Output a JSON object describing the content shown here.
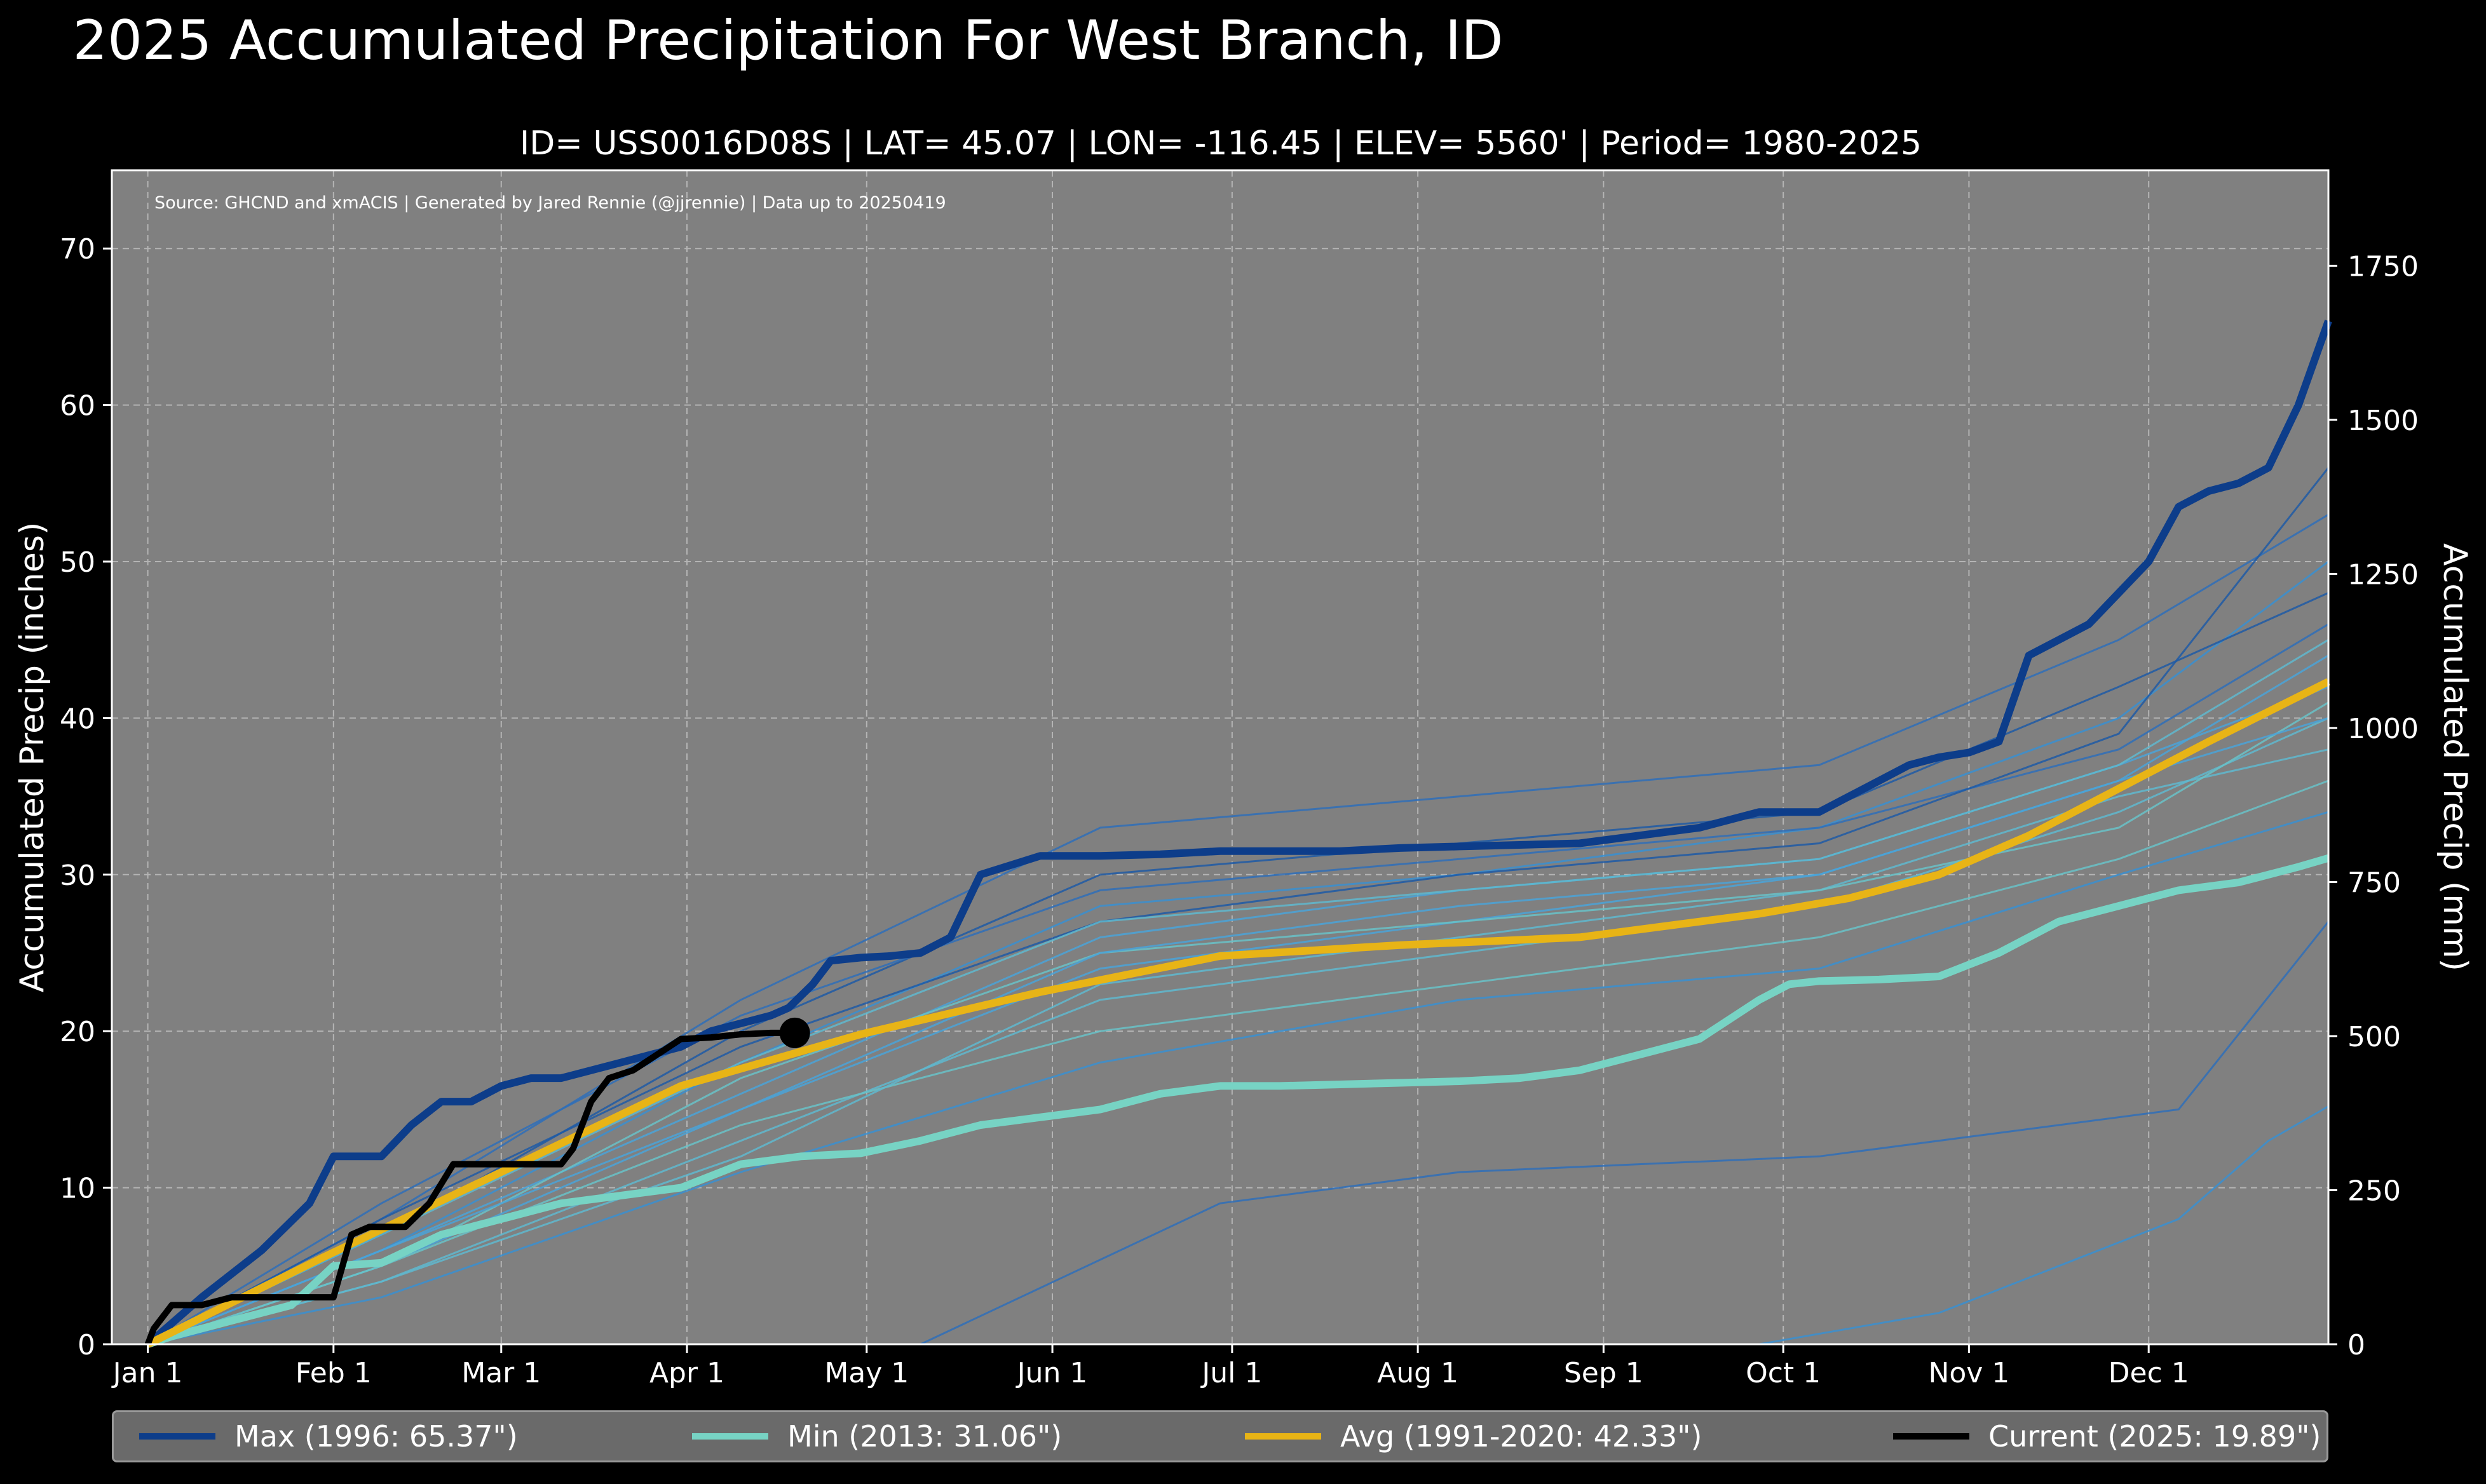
{
  "title": "2025 Accumulated Precipitation For West Branch, ID",
  "subtitle": "ID= USS0016D08S | LAT= 45.07 | LON= -116.45 | ELEV= 5560' | Period= 1980-2025",
  "chart_data": {
    "type": "line",
    "source_note": "Source: GHCND and xmACIS | Generated by Jared Rennie (@jjrennie) | Data up to 20250419",
    "ylabel": "Accumulated Precip (inches)",
    "ylabel_right": "Accumulated Precip (mm)",
    "xlabel": "",
    "ylim": [
      0,
      75
    ],
    "ylim_right_mm": [
      0,
      1905
    ],
    "x_range_days": [
      -5,
      365
    ],
    "yticks": [
      0,
      10,
      20,
      30,
      40,
      50,
      60,
      70
    ],
    "yticks_right": [
      0,
      250,
      500,
      750,
      1000,
      1250,
      1500,
      1750
    ],
    "xticks": [
      {
        "day": 1,
        "label": "Jan 1"
      },
      {
        "day": 32,
        "label": "Feb 1"
      },
      {
        "day": 60,
        "label": "Mar 1"
      },
      {
        "day": 91,
        "label": "Apr 1"
      },
      {
        "day": 121,
        "label": "May 1"
      },
      {
        "day": 152,
        "label": "Jun 1"
      },
      {
        "day": 182,
        "label": "Jul 1"
      },
      {
        "day": 213,
        "label": "Aug 1"
      },
      {
        "day": 244,
        "label": "Sep 1"
      },
      {
        "day": 274,
        "label": "Oct 1"
      },
      {
        "day": 305,
        "label": "Nov 1"
      },
      {
        "day": 335,
        "label": "Dec 1"
      }
    ],
    "grid": true,
    "legend_position": "bottom",
    "colors": {
      "max": "#0d3d8a",
      "min": "#77d3c4",
      "avg": "#e8b416",
      "current": "#000000",
      "background": "#808080",
      "history": "#2f6fb8"
    },
    "series": [
      {
        "name": "Max (1996:  65.37\")",
        "key": "max",
        "x": [
          1,
          10,
          20,
          28,
          32,
          40,
          45,
          50,
          55,
          60,
          65,
          70,
          80,
          90,
          95,
          100,
          105,
          108,
          112,
          115,
          120,
          125,
          130,
          135,
          140,
          150,
          160,
          170,
          180,
          190,
          200,
          210,
          220,
          230,
          240,
          250,
          260,
          270,
          275,
          280,
          285,
          290,
          295,
          300,
          305,
          310,
          315,
          320,
          325,
          330,
          335,
          340,
          345,
          350,
          355,
          360,
          365
        ],
        "y": [
          0,
          3,
          6,
          9,
          12,
          12,
          14,
          15.5,
          15.5,
          16.5,
          17,
          17,
          18,
          19,
          20,
          20.5,
          21,
          21.5,
          23,
          24.5,
          24.7,
          24.8,
          25,
          26,
          30,
          31.2,
          31.2,
          31.3,
          31.5,
          31.5,
          31.5,
          31.7,
          31.8,
          31.9,
          32,
          32.5,
          33,
          34,
          34,
          34,
          35,
          36,
          37,
          37.5,
          37.8,
          38.5,
          44,
          45,
          46,
          48,
          50,
          53.5,
          54.5,
          55,
          56,
          60,
          65.37
        ]
      },
      {
        "name": "Min (2013:  31.06\")",
        "key": "min",
        "x": [
          1,
          5,
          15,
          25,
          32,
          40,
          50,
          60,
          70,
          80,
          90,
          100,
          110,
          120,
          130,
          140,
          150,
          160,
          170,
          180,
          190,
          200,
          210,
          220,
          230,
          240,
          250,
          260,
          270,
          275,
          280,
          290,
          300,
          310,
          320,
          330,
          340,
          350,
          360,
          365
        ],
        "y": [
          0,
          0.5,
          1.5,
          2.5,
          5,
          5.2,
          7,
          8,
          9,
          9.5,
          10,
          11.5,
          12,
          12.2,
          13,
          14,
          14.5,
          15,
          16,
          16.5,
          16.5,
          16.6,
          16.7,
          16.8,
          17,
          17.5,
          18.5,
          19.5,
          22,
          23,
          23.2,
          23.3,
          23.5,
          25,
          27,
          28,
          29,
          29.5,
          30.5,
          31.06
        ]
      },
      {
        "name": "Avg (1991-2020:  42.33\")",
        "key": "avg",
        "x": [
          1,
          30,
          60,
          90,
          120,
          150,
          180,
          210,
          240,
          270,
          285,
          300,
          315,
          330,
          345,
          365
        ],
        "y": [
          0,
          5.5,
          11,
          16.5,
          19.8,
          22.5,
          24.8,
          25.5,
          26,
          27.5,
          28.5,
          30,
          32.5,
          35.5,
          38.5,
          42.33
        ]
      },
      {
        "name": "Current (2025:  19.89\")",
        "key": "current",
        "x": [
          1,
          2,
          5,
          10,
          15,
          20,
          25,
          28,
          32,
          35,
          38,
          40,
          44,
          48,
          52,
          55,
          60,
          65,
          70,
          72,
          75,
          78,
          82,
          86,
          90,
          95,
          100,
          105,
          108,
          109
        ],
        "y": [
          0,
          1,
          2.5,
          2.5,
          3,
          3,
          3,
          3,
          3,
          7,
          7.5,
          7.5,
          7.5,
          9,
          11.5,
          11.5,
          11.5,
          11.5,
          11.5,
          12.5,
          15.5,
          17,
          17.5,
          18.5,
          19.5,
          19.6,
          19.8,
          19.89,
          19.89,
          19.89
        ]
      }
    ],
    "history_series": [
      {
        "x": [
          1,
          40,
          100,
          160,
          220,
          280,
          330,
          365
        ],
        "y": [
          0,
          8,
          22,
          33,
          35,
          37,
          45,
          53
        ]
      },
      {
        "x": [
          1,
          40,
          100,
          160,
          220,
          280,
          330,
          365
        ],
        "y": [
          0,
          6,
          18,
          28,
          30,
          33,
          40,
          50
        ]
      },
      {
        "x": [
          1,
          40,
          100,
          160,
          220,
          280,
          330,
          365
        ],
        "y": [
          0,
          5,
          15,
          24,
          27,
          30,
          36,
          44
        ]
      },
      {
        "x": [
          1,
          40,
          100,
          160,
          220,
          280,
          330,
          365
        ],
        "y": [
          0,
          4,
          13,
          22,
          25,
          28,
          34,
          40
        ]
      },
      {
        "x": [
          1,
          40,
          100,
          160,
          220,
          280,
          330,
          365
        ],
        "y": [
          0,
          7,
          20,
          30,
          32,
          34,
          42,
          48
        ]
      },
      {
        "x": [
          1,
          40,
          100,
          160,
          220,
          280,
          330,
          365
        ],
        "y": [
          0,
          5,
          14,
          20,
          23,
          26,
          31,
          36
        ]
      },
      {
        "x": [
          1,
          40,
          100,
          160,
          220,
          280,
          330,
          365
        ],
        "y": [
          0,
          9,
          21,
          29,
          31,
          33,
          38,
          46
        ]
      },
      {
        "x": [
          1,
          40,
          100,
          160,
          220,
          280,
          330,
          365
        ],
        "y": [
          0,
          3,
          11,
          18,
          22,
          24,
          30,
          34
        ]
      },
      {
        "x": [
          1,
          40,
          100,
          160,
          220,
          280,
          330,
          365
        ],
        "y": [
          0,
          6,
          16,
          26,
          29,
          31,
          37,
          42
        ]
      },
      {
        "x": [
          1,
          40,
          100,
          160,
          220,
          280,
          330,
          365
        ],
        "y": [
          0,
          4,
          12,
          23,
          26,
          29,
          35,
          38
        ]
      },
      {
        "x": [
          1,
          40,
          100,
          160,
          220,
          280,
          330,
          365
        ],
        "y": [
          0,
          8,
          19,
          27,
          30,
          32,
          39,
          56
        ]
      },
      {
        "x": [
          1,
          40,
          100,
          160,
          220,
          280,
          330,
          365
        ],
        "y": [
          0,
          5,
          17,
          25,
          27,
          29,
          33,
          41
        ]
      },
      {
        "x": [
          130,
          180,
          220,
          280,
          320,
          340,
          365
        ],
        "y": [
          0,
          9,
          11,
          12,
          14,
          15,
          27
        ]
      },
      {
        "x": [
          270,
          300,
          320,
          340,
          355,
          365
        ],
        "y": [
          0,
          2,
          5,
          8,
          13,
          15.2
        ]
      },
      {
        "x": [
          1,
          40,
          100,
          160,
          220,
          280,
          330,
          365
        ],
        "y": [
          0,
          6,
          15,
          25,
          28,
          30,
          36,
          40
        ]
      },
      {
        "x": [
          1,
          40,
          100,
          160,
          220,
          280,
          330,
          365
        ],
        "y": [
          0,
          7,
          18,
          27,
          29,
          31,
          37,
          45
        ]
      }
    ]
  }
}
